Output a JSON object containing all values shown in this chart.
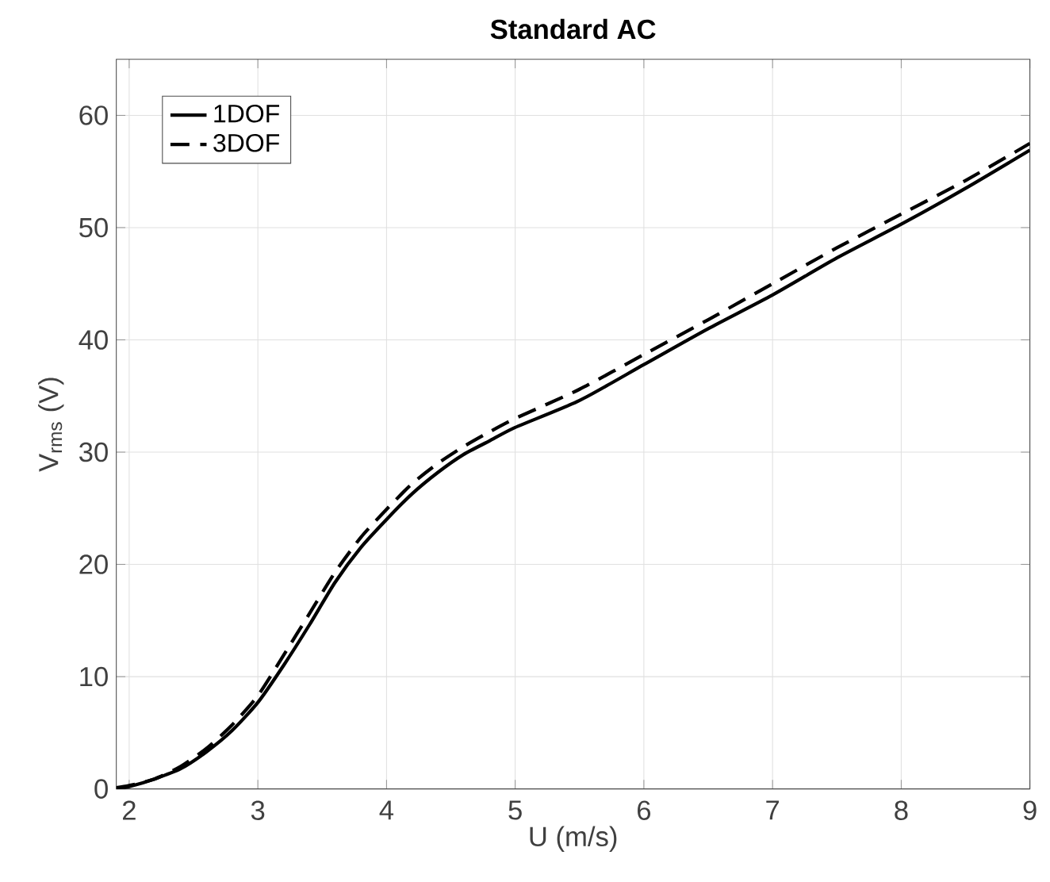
{
  "chart_data": {
    "type": "line",
    "title": "Standard AC",
    "xlabel": "U (m/s)",
    "ylabel": "V$_{rms}$ (V)",
    "xlim": [
      1.9,
      9
    ],
    "ylim": [
      0,
      65
    ],
    "xticks": [
      2,
      3,
      4,
      5,
      6,
      7,
      8,
      9
    ],
    "yticks": [
      0,
      10,
      20,
      30,
      40,
      50,
      60
    ],
    "grid": true,
    "legend": "top left",
    "marker": "none",
    "series": [
      {
        "name": "1DOF",
        "color": "#000000",
        "line_style": "solid",
        "x": [
          1.9,
          2,
          2.2,
          2.4,
          2.6,
          2.8,
          3,
          3.2,
          3.4,
          3.6,
          3.8,
          4,
          4.2,
          4.4,
          4.6,
          4.8,
          5,
          5.5,
          6,
          6.5,
          7,
          7.5,
          8,
          8.5,
          9
        ],
        "values": [
          0,
          0.2,
          0.9,
          1.8,
          3.3,
          5.2,
          7.7,
          11,
          14.6,
          18.4,
          21.5,
          24,
          26.3,
          28.2,
          29.8,
          31,
          32.2,
          34.6,
          37.8,
          41,
          44,
          47.3,
          50.3,
          53.5,
          56.9
        ]
      },
      {
        "name": "3DOF",
        "color": "#000000",
        "line_style": "dashed",
        "x": [
          1.9,
          2,
          2.2,
          2.4,
          2.6,
          2.8,
          3,
          3.2,
          3.4,
          3.6,
          3.8,
          4,
          4.2,
          4.4,
          4.6,
          4.8,
          5,
          5.5,
          6,
          6.5,
          7,
          7.5,
          8,
          8.5,
          9
        ],
        "values": [
          0.1,
          0.3,
          0.9,
          2,
          3.6,
          5.7,
          8.3,
          11.9,
          15.6,
          19.3,
          22.4,
          24.9,
          27.2,
          29,
          30.5,
          31.8,
          33,
          35.6,
          38.7,
          41.8,
          45,
          48.2,
          51.2,
          54.2,
          57.5
        ]
      }
    ]
  }
}
